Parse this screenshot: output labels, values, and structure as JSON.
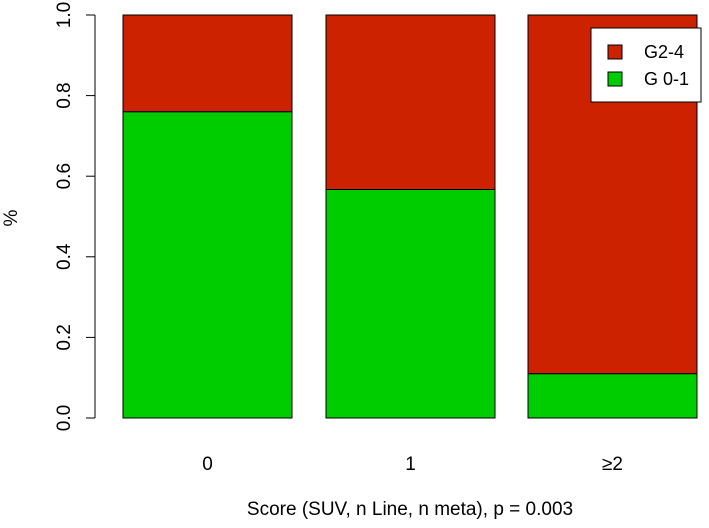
{
  "chart_data": {
    "type": "bar",
    "stacked": true,
    "title": "",
    "xlabel": "Score (SUV, n Line, n meta), p = 0.003",
    "ylabel": "%",
    "ylim": [
      0,
      1
    ],
    "yticks": [
      "0.0",
      "0.2",
      "0.4",
      "0.6",
      "0.8",
      "1.0"
    ],
    "categories": [
      "0",
      "1",
      "≥2"
    ],
    "series": [
      {
        "name": "G 0-1",
        "color": "#00CD00",
        "values": [
          0.76,
          0.567,
          0.11
        ]
      },
      {
        "name": "G2-4",
        "color": "#CD2200",
        "values": [
          0.24,
          0.433,
          0.89
        ]
      }
    ],
    "legend": {
      "position": "top-right",
      "entries": [
        {
          "label": "G2-4",
          "color": "#CD2200"
        },
        {
          "label": "G 0-1",
          "color": "#00CD00"
        }
      ]
    }
  }
}
